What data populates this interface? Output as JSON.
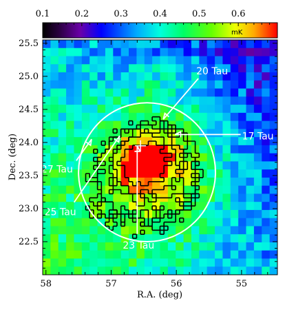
{
  "chart_data": {
    "type": "heatmap",
    "title": "",
    "xlabel": "R.A. (deg)",
    "ylabel": "Dec. (deg)",
    "xlim": [
      58.05,
      54.45
    ],
    "ylim": [
      22.0,
      25.55
    ],
    "x_ticks": [
      58,
      57,
      56,
      55
    ],
    "y_ticks": [
      22.5,
      23.0,
      23.5,
      24.0,
      24.5,
      25.0,
      25.5
    ],
    "x_tick_labels": [
      "58",
      "57",
      "56",
      "55"
    ],
    "y_tick_labels": [
      "22.5",
      "23.0",
      "23.5",
      "24.0",
      "24.5",
      "25.0",
      "25.5"
    ],
    "colorbar": {
      "min": 0.1,
      "max": 0.7,
      "ticks": [
        0.1,
        0.2,
        0.3,
        0.4,
        0.5,
        0.6
      ],
      "tick_labels": [
        "0.1",
        "0.2",
        "0.3",
        "0.4",
        "0.5",
        "0.6"
      ],
      "unit": "mK"
    },
    "circle": {
      "center_ra": 56.45,
      "center_dec": 23.55,
      "radius_deg": 1.05
    },
    "stars": [
      {
        "name": "20 Tau",
        "ra": 56.2,
        "dec": 24.35
      },
      {
        "name": "17 Tau",
        "ra": 56.02,
        "dec": 24.12
      },
      {
        "name": "27 Tau",
        "ra": 57.3,
        "dec": 24.05
      },
      {
        "name": "25 Tau",
        "ra": 56.87,
        "dec": 24.1
      },
      {
        "name": "23 Tau",
        "ra": 56.6,
        "dec": 23.95
      }
    ],
    "label_positions_ra_dec": {
      "20 Tau": [
        55.6,
        25.05
      ],
      "17 Tau": [
        54.95,
        24.1
      ],
      "27 Tau": [
        57.85,
        23.6
      ],
      "25 Tau": [
        57.8,
        22.95
      ],
      "23 Tau": [
        56.6,
        22.45
      ]
    },
    "blobs": [
      {
        "ra": 56.55,
        "dec": 23.7,
        "sra": 0.28,
        "sdec": 0.25,
        "amp": 0.24
      },
      {
        "ra": 56.35,
        "dec": 23.55,
        "sra": 0.75,
        "sdec": 0.72,
        "amp": 0.18
      },
      {
        "ra": 56.2,
        "dec": 24.1,
        "sra": 0.35,
        "sdec": 0.3,
        "amp": 0.06
      },
      {
        "ra": 55.9,
        "dec": 23.5,
        "sra": 0.4,
        "sdec": 0.4,
        "amp": 0.05
      },
      {
        "ra": 56.0,
        "dec": 24.9,
        "sra": 0.7,
        "sdec": 0.3,
        "amp": 0.06
      }
    ],
    "gradient": {
      "base": 0.36,
      "ra_slope": 0.04,
      "dec_slope": -0.035,
      "ref_ra": 56.3,
      "ref_dec": 23.7
    },
    "contour_levels": [
      0.5,
      0.52,
      0.56,
      0.6,
      0.66
    ],
    "grid_cells": {
      "ra": 30,
      "dec": 29
    },
    "grid": false,
    "legend": "none"
  }
}
